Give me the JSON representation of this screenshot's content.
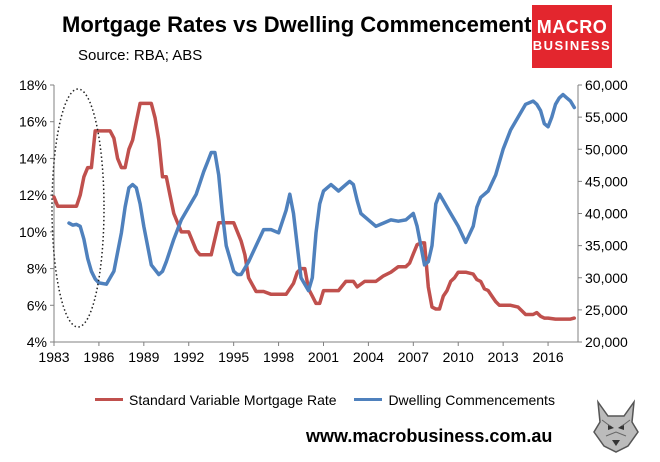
{
  "header": {
    "title": "Mortgage Rates vs Dwelling Commencements",
    "source": "Source: RBA; ABS"
  },
  "logo": {
    "line1": "MACRO",
    "line2": "BUSINESS"
  },
  "footer": {
    "url": "www.macrobusiness.com.au"
  },
  "colors": {
    "mortgage": "#c0504d",
    "dwelling": "#4f81bd",
    "logo_bg": "#e3262e"
  },
  "chart_data": {
    "type": "line",
    "title": "Mortgage Rates vs Dwelling Commencements",
    "x_ticks": [
      "1983",
      "1986",
      "1989",
      "1992",
      "1995",
      "1998",
      "2001",
      "2004",
      "2007",
      "2010",
      "2013",
      "2016"
    ],
    "xlim": [
      1983,
      2018
    ],
    "y_left": {
      "ticks": [
        "4%",
        "6%",
        "8%",
        "10%",
        "12%",
        "14%",
        "16%",
        "18%"
      ],
      "lim": [
        4,
        18
      ]
    },
    "y_right": {
      "ticks": [
        "20,000",
        "25,000",
        "30,000",
        "35,000",
        "40,000",
        "45,000",
        "50,000",
        "55,000",
        "60,000"
      ],
      "lim": [
        20000,
        60000
      ]
    },
    "legend_position": "bottom",
    "series": [
      {
        "name": "Standard Variable Mortgage Rate",
        "axis": "left",
        "color": "#c0504d",
        "x": [
          1983.0,
          1983.25,
          1983.5,
          1984.0,
          1984.5,
          1984.75,
          1985.0,
          1985.25,
          1985.5,
          1985.75,
          1986.25,
          1986.75,
          1987.0,
          1987.25,
          1987.5,
          1987.75,
          1988.0,
          1988.25,
          1988.5,
          1988.75,
          1989.0,
          1989.5,
          1989.75,
          1990.0,
          1990.25,
          1990.5,
          1990.75,
          1991.0,
          1991.5,
          1992.0,
          1992.5,
          1992.75,
          1993.0,
          1993.5,
          1994.0,
          1994.25,
          1994.5,
          1995.0,
          1995.5,
          1995.75,
          1996.0,
          1996.5,
          1996.75,
          1997.0,
          1997.5,
          1998.0,
          1998.5,
          1999.0,
          1999.25,
          1999.5,
          1999.75,
          2000.0,
          2000.25,
          2000.5,
          2000.75,
          2001.0,
          2001.5,
          2002.0,
          2002.5,
          2003.0,
          2003.25,
          2003.75,
          2004.0,
          2004.5,
          2005.0,
          2005.5,
          2006.0,
          2006.5,
          2006.75,
          2007.0,
          2007.25,
          2007.5,
          2007.75,
          2008.0,
          2008.25,
          2008.5,
          2008.75,
          2009.0,
          2009.25,
          2009.5,
          2009.75,
          2010.0,
          2010.5,
          2011.0,
          2011.25,
          2011.5,
          2011.75,
          2012.0,
          2012.25,
          2012.5,
          2012.75,
          2013.0,
          2013.5,
          2014.0,
          2014.5,
          2015.0,
          2015.25,
          2015.5,
          2015.75,
          2016.0,
          2016.5,
          2017.0,
          2017.5,
          2017.75
        ],
        "values": [
          11.9,
          11.4,
          11.4,
          11.4,
          11.4,
          12.0,
          13.0,
          13.5,
          13.5,
          15.5,
          15.5,
          15.5,
          15.1,
          14.0,
          13.5,
          13.5,
          14.5,
          15.0,
          16.0,
          17.0,
          17.0,
          17.0,
          16.2,
          15.0,
          13.0,
          13.0,
          12.0,
          11.0,
          10.0,
          10.0,
          9.0,
          8.75,
          8.75,
          8.75,
          10.5,
          10.5,
          10.5,
          10.5,
          9.5,
          8.75,
          7.5,
          6.75,
          6.75,
          6.75,
          6.6,
          6.6,
          6.6,
          7.2,
          7.8,
          8.0,
          8.0,
          6.9,
          6.5,
          6.1,
          6.1,
          6.8,
          6.8,
          6.8,
          7.3,
          7.3,
          7.0,
          7.3,
          7.3,
          7.3,
          7.6,
          7.8,
          8.1,
          8.1,
          8.3,
          8.8,
          9.3,
          9.4,
          9.4,
          7.0,
          5.9,
          5.8,
          5.8,
          6.5,
          6.8,
          7.3,
          7.5,
          7.8,
          7.8,
          7.7,
          7.4,
          7.3,
          6.9,
          6.8,
          6.5,
          6.2,
          6.0,
          6.0,
          6.0,
          5.9,
          5.5,
          5.5,
          5.6,
          5.4,
          5.3,
          5.3,
          5.25,
          5.25,
          5.25,
          5.3
        ]
      },
      {
        "name": "Dwelling Commencements",
        "axis": "right",
        "color": "#4f81bd",
        "x": [
          1984.0,
          1984.25,
          1984.5,
          1984.75,
          1985.0,
          1985.25,
          1985.5,
          1985.75,
          1986.0,
          1986.5,
          1987.0,
          1987.5,
          1987.75,
          1988.0,
          1988.25,
          1988.5,
          1988.75,
          1989.0,
          1989.5,
          1990.0,
          1990.25,
          1990.5,
          1991.0,
          1991.5,
          1992.0,
          1992.5,
          1993.0,
          1993.25,
          1993.5,
          1993.75,
          1994.0,
          1994.25,
          1994.5,
          1995.0,
          1995.25,
          1995.5,
          1996.0,
          1996.5,
          1997.0,
          1997.5,
          1998.0,
          1998.5,
          1998.75,
          1999.0,
          1999.5,
          2000.0,
          2000.25,
          2000.5,
          2000.75,
          2001.0,
          2001.5,
          2002.0,
          2002.5,
          2002.75,
          2003.0,
          2003.25,
          2003.5,
          2004.0,
          2004.5,
          2005.0,
          2005.5,
          2006.0,
          2006.5,
          2007.0,
          2007.25,
          2007.5,
          2007.75,
          2008.0,
          2008.25,
          2008.5,
          2008.75,
          2009.0,
          2009.25,
          2009.5,
          2010.0,
          2010.5,
          2011.0,
          2011.25,
          2011.5,
          2012.0,
          2012.5,
          2013.0,
          2013.5,
          2014.0,
          2014.5,
          2015.0,
          2015.25,
          2015.5,
          2015.75,
          2016.0,
          2016.25,
          2016.5,
          2016.75,
          2017.0,
          2017.25,
          2017.5,
          2017.75
        ],
        "values": [
          38.5,
          38.2,
          38.3,
          38.0,
          36.0,
          33.0,
          31.0,
          29.8,
          29.2,
          29.0,
          31.0,
          37.0,
          41.0,
          44.0,
          44.5,
          44.0,
          41.5,
          38.0,
          32.0,
          30.5,
          31.0,
          32.5,
          36.0,
          39.0,
          41.0,
          43.0,
          46.5,
          48.0,
          49.5,
          49.5,
          46.0,
          40.0,
          35.0,
          31.0,
          30.5,
          30.5,
          32.5,
          35.0,
          37.5,
          37.5,
          37.0,
          40.5,
          43.0,
          40.0,
          30.0,
          28.0,
          30.0,
          37.0,
          41.5,
          43.5,
          44.5,
          43.5,
          44.5,
          45.0,
          44.5,
          42.0,
          40.0,
          39.0,
          38.0,
          38.5,
          39.0,
          38.8,
          39.0,
          40.0,
          38.0,
          35.0,
          32.0,
          32.5,
          35.0,
          41.5,
          43.0,
          42.0,
          41.0,
          40.0,
          38.0,
          35.5,
          38.0,
          41.0,
          42.5,
          43.5,
          46.0,
          50.0,
          53.0,
          55.0,
          57.0,
          57.5,
          57.0,
          56.0,
          54.0,
          53.5,
          55.0,
          57.0,
          58.0,
          58.5,
          58.0,
          57.5,
          56.5
        ]
      }
    ],
    "annotation": "dotted-ellipse-around-1984-1987"
  }
}
